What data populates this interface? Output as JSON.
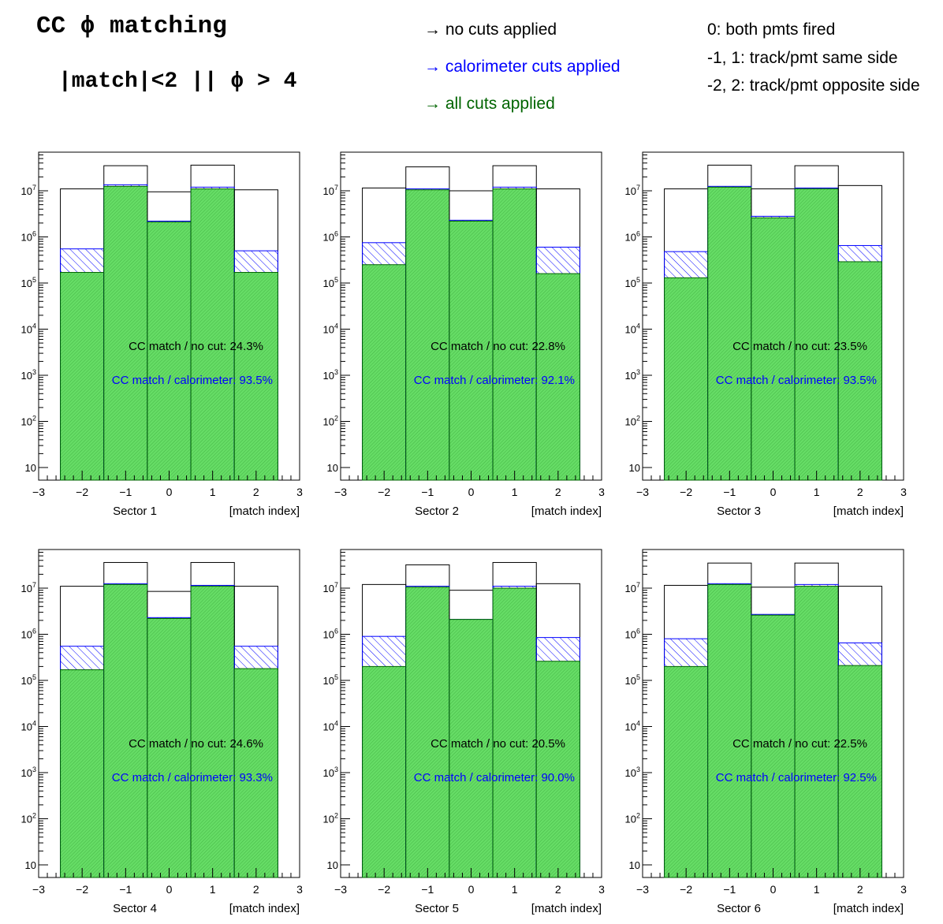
{
  "header": {
    "title": "CC ϕ matching",
    "subtitle": "|match|<2 || ϕ > 4"
  },
  "legend": {
    "no_cuts": "→ no cuts applied",
    "calorimeter": "→ calorimeter cuts applied",
    "all_cuts": "→ all cuts applied"
  },
  "notes": {
    "n0": "0: both pmts fired",
    "n1": "-1, 1: track/pmt same side",
    "n2": "-2, 2: track/pmt opposite side"
  },
  "colors": {
    "no_cuts": "#000000",
    "calorimeter": "#0000ff",
    "all_cuts": "#006400",
    "fill": "#66dd66"
  },
  "chart_data": [
    {
      "type": "bar",
      "sector": "Sector 1",
      "xlabel": "[match index]",
      "categories": [
        -2,
        -1,
        0,
        1,
        2
      ],
      "xlim": [
        -3,
        3
      ],
      "ylog": true,
      "series": [
        {
          "name": "no cuts applied",
          "values": [
            11000000,
            35000000,
            9500000,
            36000000,
            10500000
          ]
        },
        {
          "name": "calorimeter cuts applied",
          "values": [
            550000,
            13500000,
            2200000,
            12000000,
            500000
          ]
        },
        {
          "name": "all cuts applied",
          "values": [
            170000,
            12500000,
            2100000,
            11000000,
            170000
          ]
        }
      ],
      "ann_nocut": "CC match / no cut:  24.3%",
      "ann_calo": "CC match / calorimeter:  93.5%"
    },
    {
      "type": "bar",
      "sector": "Sector 2",
      "xlabel": "[match index]",
      "categories": [
        -2,
        -1,
        0,
        1,
        2
      ],
      "xlim": [
        -3,
        3
      ],
      "ylog": true,
      "series": [
        {
          "name": "no cuts applied",
          "values": [
            11500000,
            33000000,
            10000000,
            35000000,
            11000000
          ]
        },
        {
          "name": "calorimeter cuts applied",
          "values": [
            750000,
            11000000,
            2300000,
            12000000,
            600000
          ]
        },
        {
          "name": "all cuts applied",
          "values": [
            250000,
            10500000,
            2200000,
            11000000,
            160000
          ]
        }
      ],
      "ann_nocut": "CC match / no cut:  22.8%",
      "ann_calo": "CC match / calorimeter:  92.1%"
    },
    {
      "type": "bar",
      "sector": "Sector 3",
      "xlabel": "[match index]",
      "categories": [
        -2,
        -1,
        0,
        1,
        2
      ],
      "xlim": [
        -3,
        3
      ],
      "ylog": true,
      "series": [
        {
          "name": "no cuts applied",
          "values": [
            11000000,
            36000000,
            11000000,
            35000000,
            13000000
          ]
        },
        {
          "name": "calorimeter cuts applied",
          "values": [
            480000,
            12500000,
            2800000,
            11500000,
            650000
          ]
        },
        {
          "name": "all cuts applied",
          "values": [
            130000,
            12000000,
            2600000,
            11000000,
            290000
          ]
        }
      ],
      "ann_nocut": "CC match / no cut:  23.5%",
      "ann_calo": "CC match / calorimeter:  93.5%"
    },
    {
      "type": "bar",
      "sector": "Sector 4",
      "xlabel": "[match index]",
      "categories": [
        -2,
        -1,
        0,
        1,
        2
      ],
      "xlim": [
        -3,
        3
      ],
      "ylog": true,
      "series": [
        {
          "name": "no cuts applied",
          "values": [
            11000000,
            36000000,
            8500000,
            36000000,
            11000000
          ]
        },
        {
          "name": "calorimeter cuts applied",
          "values": [
            550000,
            12500000,
            2300000,
            11500000,
            550000
          ]
        },
        {
          "name": "all cuts applied",
          "values": [
            170000,
            12000000,
            2200000,
            11000000,
            180000
          ]
        }
      ],
      "ann_nocut": "CC match / no cut:  24.6%",
      "ann_calo": "CC match / calorimeter:  93.3%"
    },
    {
      "type": "bar",
      "sector": "Sector 5",
      "xlabel": "[match index]",
      "categories": [
        -2,
        -1,
        0,
        1,
        2
      ],
      "xlim": [
        -3,
        3
      ],
      "ylog": true,
      "series": [
        {
          "name": "no cuts applied",
          "values": [
            12000000,
            32000000,
            9000000,
            36000000,
            12500000
          ]
        },
        {
          "name": "calorimeter cuts applied",
          "values": [
            900000,
            11000000,
            2100000,
            11000000,
            850000
          ]
        },
        {
          "name": "all cuts applied",
          "values": [
            200000,
            10500000,
            2100000,
            10000000,
            260000
          ]
        }
      ],
      "ann_nocut": "CC match / no cut:  20.5%",
      "ann_calo": "CC match / calorimeter:  90.0%"
    },
    {
      "type": "bar",
      "sector": "Sector 6",
      "xlabel": "[match index]",
      "categories": [
        -2,
        -1,
        0,
        1,
        2
      ],
      "xlim": [
        -3,
        3
      ],
      "ylog": true,
      "series": [
        {
          "name": "no cuts applied",
          "values": [
            11500000,
            35000000,
            10500000,
            35000000,
            11000000
          ]
        },
        {
          "name": "calorimeter cuts applied",
          "values": [
            800000,
            12500000,
            2700000,
            12000000,
            650000
          ]
        },
        {
          "name": "all cuts applied",
          "values": [
            200000,
            12000000,
            2600000,
            11000000,
            210000
          ]
        }
      ],
      "ann_nocut": "CC match / no cut:  22.5%",
      "ann_calo": "CC match / calorimeter:  92.5%"
    }
  ]
}
